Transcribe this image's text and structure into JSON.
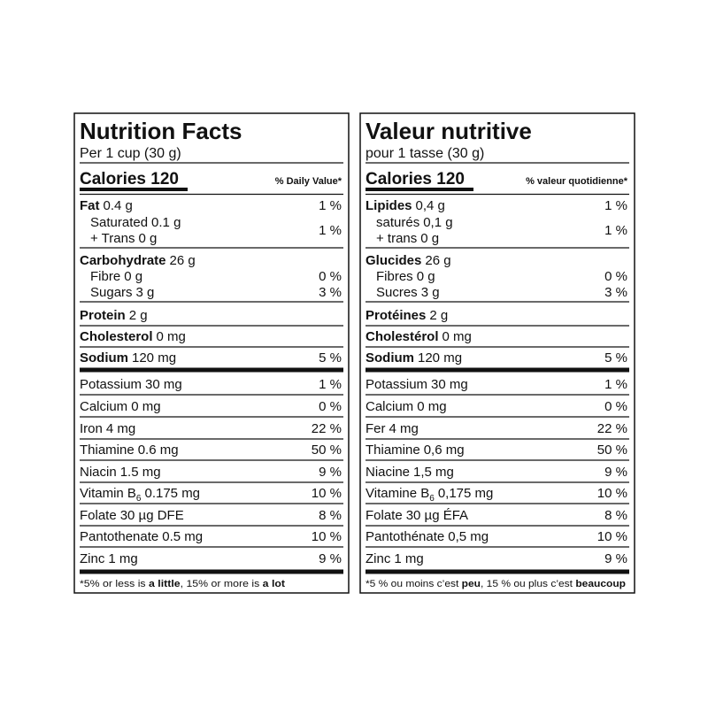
{
  "panels": [
    {
      "title": "Nutrition Facts",
      "serving": "Per 1 cup (30 g)",
      "calories": "Calories 120",
      "dv_header": "% Daily Value*",
      "rows": [
        {
          "name": "Fat",
          "amount": "0.4 g",
          "dv": "1 %"
        },
        {
          "name": "Saturated",
          "amount": "0.1 g"
        },
        {
          "name": "+ Trans",
          "amount": "0 g",
          "dv": "1 %"
        },
        {
          "name": "Carbohydrate",
          "amount": "26 g"
        },
        {
          "name": "Fibre",
          "amount": "0 g",
          "dv": "0 %"
        },
        {
          "name": "Sugars",
          "amount": "3 g",
          "dv": "3 %"
        },
        {
          "name": "Protein",
          "amount": "2 g"
        },
        {
          "name": "Cholesterol",
          "amount": "0 mg"
        },
        {
          "name": "Sodium",
          "amount": "120 mg",
          "dv": "5 %"
        },
        {
          "name": "Potassium",
          "amount": "30 mg",
          "dv": "1 %"
        },
        {
          "name": "Calcium",
          "amount": "0 mg",
          "dv": "0 %"
        },
        {
          "name": "Iron",
          "amount": "4 mg",
          "dv": "22 %"
        },
        {
          "name": "Thiamine",
          "amount": "0.6 mg",
          "dv": "50 %"
        },
        {
          "name": "Niacin",
          "amount": "1.5 mg",
          "dv": "9 %"
        },
        {
          "name": "Vitamin B",
          "sub": "6",
          "amount": "0.175 mg",
          "dv": "10 %"
        },
        {
          "name": "Folate",
          "amount": "30 µg DFE",
          "dv": "8 %"
        },
        {
          "name": "Pantothenate",
          "amount": "0.5 mg",
          "dv": "10 %"
        },
        {
          "name": "Zinc",
          "amount": "1 mg",
          "dv": "9 %"
        }
      ],
      "footnote": [
        {
          "text": "*5% or less is "
        },
        {
          "text": "a little",
          "bold": true
        },
        {
          "text": ", 15% or more is "
        },
        {
          "text": "a lot",
          "bold": true
        }
      ]
    },
    {
      "title": "Valeur nutritive",
      "serving": "pour 1 tasse (30 g)",
      "calories": "Calories 120",
      "dv_header": "% valeur quotidienne*",
      "rows": [
        {
          "name": "Lipides",
          "amount": "0,4 g",
          "dv": "1 %"
        },
        {
          "name": "saturés",
          "amount": "0,1 g"
        },
        {
          "name": "+ trans",
          "amount": "0 g",
          "dv": "1 %"
        },
        {
          "name": "Glucides",
          "amount": "26 g"
        },
        {
          "name": "Fibres",
          "amount": "0 g",
          "dv": "0 %"
        },
        {
          "name": "Sucres",
          "amount": "3 g",
          "dv": "3 %"
        },
        {
          "name": "Protéines",
          "amount": "2 g"
        },
        {
          "name": "Cholestérol",
          "amount": "0 mg"
        },
        {
          "name": "Sodium",
          "amount": "120 mg",
          "dv": "5 %"
        },
        {
          "name": "Potassium",
          "amount": "30 mg",
          "dv": "1 %"
        },
        {
          "name": "Calcium",
          "amount": "0 mg",
          "dv": "0 %"
        },
        {
          "name": "Fer",
          "amount": "4 mg",
          "dv": "22 %"
        },
        {
          "name": "Thiamine",
          "amount": "0,6 mg",
          "dv": "50 %"
        },
        {
          "name": "Niacine",
          "amount": "1,5 mg",
          "dv": "9 %"
        },
        {
          "name": "Vitamine B",
          "sub": "6",
          "amount": "0,175 mg",
          "dv": "10 %"
        },
        {
          "name": "Folate",
          "amount": "30 µg ÉFA",
          "dv": "8 %"
        },
        {
          "name": "Pantothénate",
          "amount": "0,5 mg",
          "dv": "10 %"
        },
        {
          "name": "Zinc",
          "amount": "1 mg",
          "dv": "9 %"
        }
      ],
      "footnote": [
        {
          "text": "*5 % ou moins c’est "
        },
        {
          "text": "peu",
          "bold": true
        },
        {
          "text": ", 15 % ou plus c’est "
        },
        {
          "text": "beaucoup",
          "bold": true
        }
      ]
    }
  ]
}
